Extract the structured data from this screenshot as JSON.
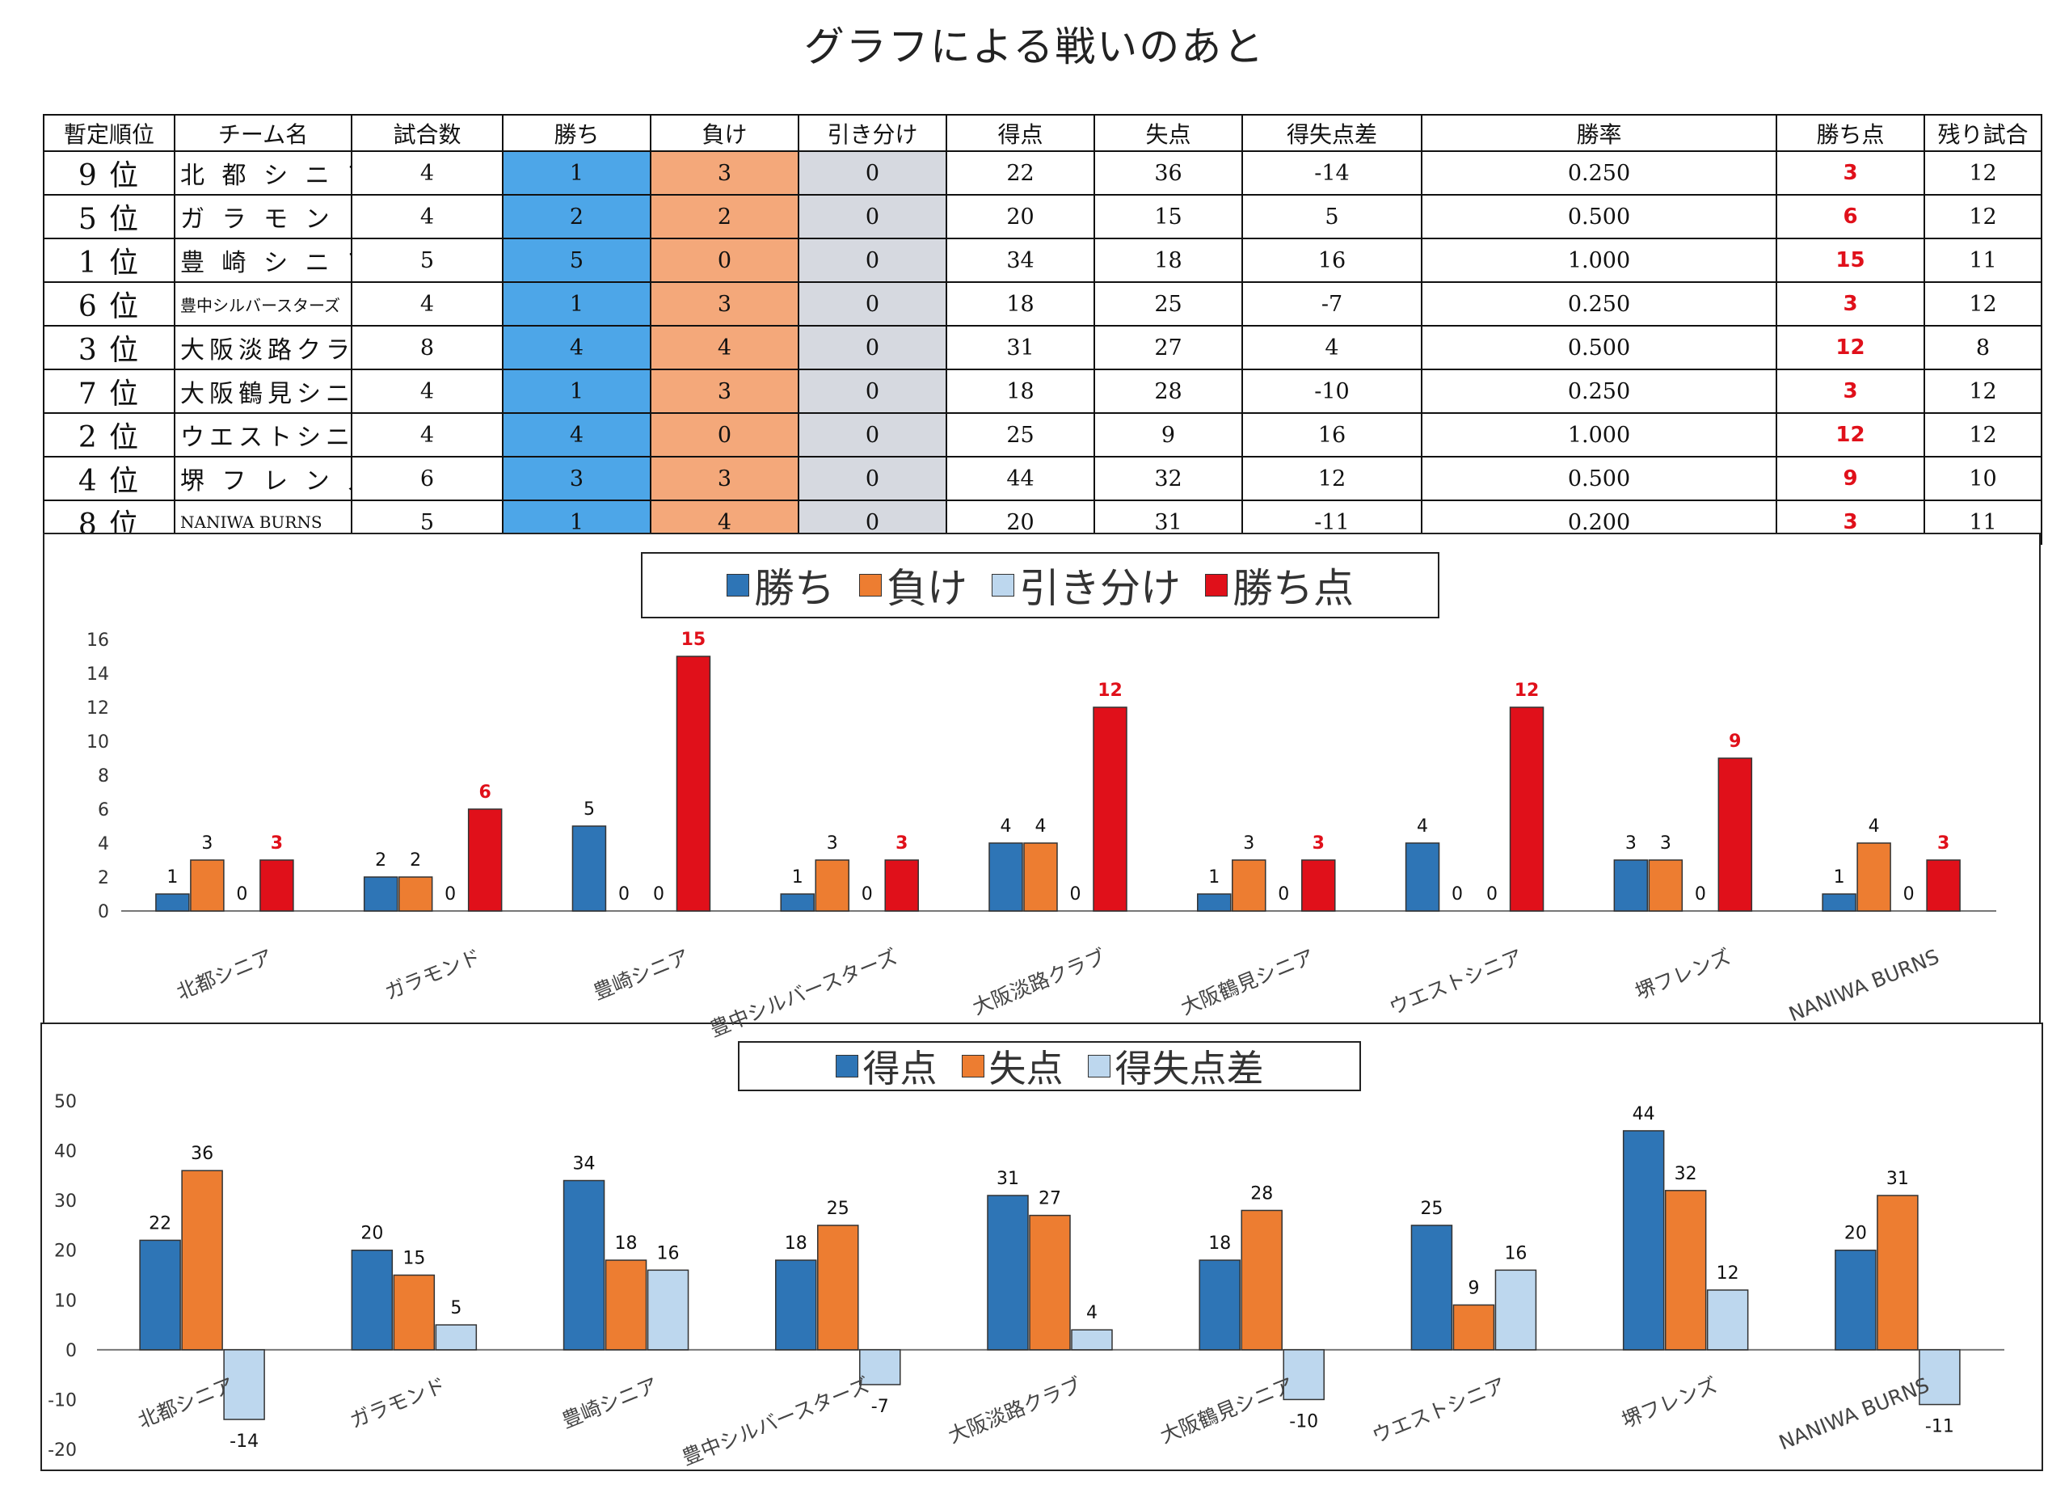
{
  "title": "グラフによる戦いのあと",
  "colors": {
    "win": "#2e75b6",
    "loss": "#ed7d31",
    "draw": "#bdd7ee",
    "points": "#e0101a",
    "label_red": "#e0101a"
  },
  "table": {
    "headers": [
      "暫定順位",
      "チーム名",
      "試合数",
      "勝ち",
      "負け",
      "引き分け",
      "得点",
      "失点",
      "得失点差",
      "勝率",
      "勝ち点",
      "残り試合"
    ],
    "rows": [
      {
        "rank": "9 位",
        "team": "北 都 シ ニ ア",
        "games": "4",
        "win": "1",
        "loss": "3",
        "draw": "0",
        "scored": "22",
        "allowed": "36",
        "diff": "-14",
        "rate": "0.250",
        "points": "3",
        "remaining": "12"
      },
      {
        "rank": "5 位",
        "team": "ガ ラ モ ン ド",
        "games": "4",
        "win": "2",
        "loss": "2",
        "draw": "0",
        "scored": "20",
        "allowed": "15",
        "diff": "5",
        "rate": "0.500",
        "points": "6",
        "remaining": "12"
      },
      {
        "rank": "1 位",
        "team": "豊 崎 シ ニ ア",
        "games": "5",
        "win": "5",
        "loss": "0",
        "draw": "0",
        "scored": "34",
        "allowed": "18",
        "diff": "16",
        "rate": "1.000",
        "points": "15",
        "remaining": "11"
      },
      {
        "rank": "6 位",
        "team": "豊中シルバースターズ",
        "games": "4",
        "win": "1",
        "loss": "3",
        "draw": "0",
        "scored": "18",
        "allowed": "25",
        "diff": "-7",
        "rate": "0.250",
        "points": "3",
        "remaining": "12"
      },
      {
        "rank": "3 位",
        "team": "大阪淡路クラブ",
        "games": "8",
        "win": "4",
        "loss": "4",
        "draw": "0",
        "scored": "31",
        "allowed": "27",
        "diff": "4",
        "rate": "0.500",
        "points": "12",
        "remaining": "8"
      },
      {
        "rank": "7 位",
        "team": "大阪鶴見シニア",
        "games": "4",
        "win": "1",
        "loss": "3",
        "draw": "0",
        "scored": "18",
        "allowed": "28",
        "diff": "-10",
        "rate": "0.250",
        "points": "3",
        "remaining": "12"
      },
      {
        "rank": "2 位",
        "team": "ウエストシニア",
        "games": "4",
        "win": "4",
        "loss": "0",
        "draw": "0",
        "scored": "25",
        "allowed": "9",
        "diff": "16",
        "rate": "1.000",
        "points": "12",
        "remaining": "12"
      },
      {
        "rank": "4 位",
        "team": "堺 フ レ ン ズ",
        "games": "6",
        "win": "3",
        "loss": "3",
        "draw": "0",
        "scored": "44",
        "allowed": "32",
        "diff": "12",
        "rate": "0.500",
        "points": "9",
        "remaining": "10"
      },
      {
        "rank": "8 位",
        "team": "NANIWA BURNS",
        "games": "5",
        "win": "1",
        "loss": "4",
        "draw": "0",
        "scored": "20",
        "allowed": "31",
        "diff": "-11",
        "rate": "0.200",
        "points": "3",
        "remaining": "11"
      }
    ]
  },
  "chart_data": [
    {
      "type": "bar",
      "legend": [
        "勝ち",
        "負け",
        "引き分け",
        "勝ち点"
      ],
      "legend_position": "top-center",
      "categories": [
        "北都シニア",
        "ガラモンド",
        "豊崎シニア",
        "豊中シルバースターズ",
        "大阪淡路クラブ",
        "大阪鶴見シニア",
        "ウエストシニア",
        "堺フレンズ",
        "NANIWA BURNS"
      ],
      "series": [
        {
          "name": "勝ち",
          "values": [
            1,
            2,
            5,
            1,
            4,
            1,
            4,
            3,
            1
          ]
        },
        {
          "name": "負け",
          "values": [
            3,
            2,
            0,
            3,
            4,
            3,
            0,
            3,
            4
          ]
        },
        {
          "name": "引き分け",
          "values": [
            0,
            0,
            0,
            0,
            0,
            0,
            0,
            0,
            0
          ]
        },
        {
          "name": "勝ち点",
          "values": [
            3,
            6,
            15,
            3,
            12,
            3,
            12,
            9,
            3
          ]
        }
      ],
      "yticks": [
        0,
        2,
        4,
        6,
        8,
        10,
        12,
        14,
        16
      ],
      "ylim": [
        0,
        16
      ],
      "grid": false
    },
    {
      "type": "bar",
      "legend": [
        "得点",
        "失点",
        "得失点差"
      ],
      "legend_position": "top-center",
      "categories": [
        "北都シニア",
        "ガラモンド",
        "豊崎シニア",
        "豊中シルバースターズ",
        "大阪淡路クラブ",
        "大阪鶴見シニア",
        "ウエストシニア",
        "堺フレンズ",
        "NANIWA BURNS"
      ],
      "series": [
        {
          "name": "得点",
          "values": [
            22,
            20,
            34,
            18,
            31,
            18,
            25,
            44,
            20
          ]
        },
        {
          "name": "失点",
          "values": [
            36,
            15,
            18,
            25,
            27,
            28,
            9,
            32,
            31
          ]
        },
        {
          "name": "得失点差",
          "values": [
            -14,
            5,
            16,
            -7,
            4,
            -10,
            16,
            12,
            -11
          ]
        }
      ],
      "yticks": [
        -20,
        -10,
        0,
        10,
        20,
        30,
        40,
        50
      ],
      "ylim": [
        -20,
        50
      ],
      "grid": false
    }
  ]
}
